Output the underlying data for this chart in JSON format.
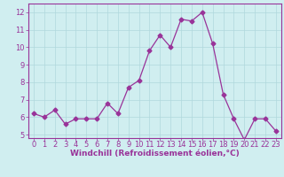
{
  "x": [
    0,
    1,
    2,
    3,
    4,
    5,
    6,
    7,
    8,
    9,
    10,
    11,
    12,
    13,
    14,
    15,
    16,
    17,
    18,
    19,
    20,
    21,
    22,
    23
  ],
  "y": [
    6.2,
    6.0,
    6.4,
    5.6,
    5.9,
    5.9,
    5.9,
    6.8,
    6.2,
    7.7,
    8.1,
    9.8,
    10.7,
    10.0,
    11.6,
    11.5,
    12.0,
    10.2,
    7.3,
    5.9,
    4.7,
    5.9,
    5.9,
    5.2
  ],
  "line_color": "#993399",
  "marker": "D",
  "marker_size": 2.5,
  "xlabel": "Windchill (Refroidissement éolien,°C)",
  "ylabel": "",
  "title": "",
  "xlim": [
    -0.5,
    23.5
  ],
  "ylim": [
    4.8,
    12.5
  ],
  "yticks": [
    5,
    6,
    7,
    8,
    9,
    10,
    11,
    12
  ],
  "xticks": [
    0,
    1,
    2,
    3,
    4,
    5,
    6,
    7,
    8,
    9,
    10,
    11,
    12,
    13,
    14,
    15,
    16,
    17,
    18,
    19,
    20,
    21,
    22,
    23
  ],
  "bg_color": "#d0eef0",
  "grid_color": "#b0d8dc",
  "font_color": "#993399",
  "font_size": 6,
  "xlabel_fontsize": 6.5
}
